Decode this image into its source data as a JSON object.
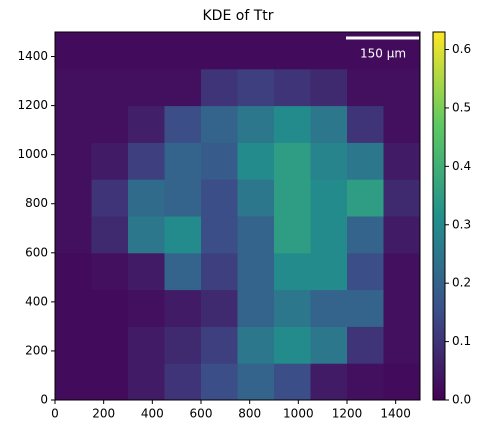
{
  "chart_data": {
    "type": "heatmap",
    "title": "KDE of Ttr",
    "xlim": [
      0,
      1500
    ],
    "ylim": [
      0,
      1500
    ],
    "xticks": [
      0,
      200,
      400,
      600,
      800,
      1000,
      1200,
      1400
    ],
    "yticks": [
      0,
      200,
      400,
      600,
      800,
      1000,
      1200,
      1400
    ],
    "z": [
      [
        0.02,
        0.02,
        0.05,
        0.1,
        0.15,
        0.2,
        0.15,
        0.05,
        0.03,
        0.02
      ],
      [
        0.02,
        0.02,
        0.05,
        0.08,
        0.12,
        0.25,
        0.3,
        0.25,
        0.1,
        0.03
      ],
      [
        0.02,
        0.02,
        0.03,
        0.05,
        0.08,
        0.2,
        0.25,
        0.2,
        0.2,
        0.03
      ],
      [
        0.02,
        0.03,
        0.05,
        0.2,
        0.12,
        0.2,
        0.3,
        0.3,
        0.15,
        0.03
      ],
      [
        0.03,
        0.08,
        0.25,
        0.3,
        0.15,
        0.2,
        0.35,
        0.3,
        0.2,
        0.05
      ],
      [
        0.03,
        0.1,
        0.22,
        0.2,
        0.15,
        0.25,
        0.35,
        0.3,
        0.35,
        0.08
      ],
      [
        0.03,
        0.05,
        0.12,
        0.2,
        0.18,
        0.3,
        0.35,
        0.28,
        0.25,
        0.05
      ],
      [
        0.03,
        0.03,
        0.06,
        0.15,
        0.2,
        0.25,
        0.3,
        0.25,
        0.1,
        0.03
      ],
      [
        0.03,
        0.03,
        0.03,
        0.03,
        0.1,
        0.12,
        0.1,
        0.08,
        0.03,
        0.03
      ],
      [
        0.02,
        0.02,
        0.02,
        0.02,
        0.02,
        0.02,
        0.02,
        0.02,
        0.02,
        0.02
      ]
    ],
    "colormap": "viridis",
    "clim": [
      0,
      0.63
    ],
    "cticks": [
      {
        "value": 0,
        "label": "0.0"
      },
      0.1,
      0.2,
      0.3,
      0.4,
      0.5,
      0.6
    ],
    "scalebar_label": "150 µm"
  }
}
